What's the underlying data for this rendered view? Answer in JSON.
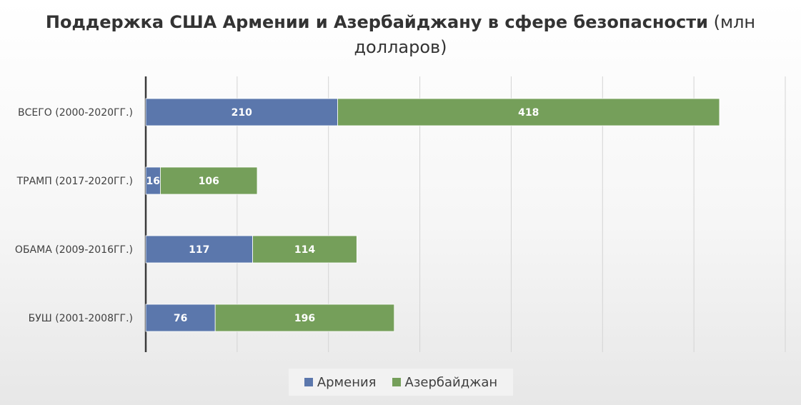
{
  "chart_data": {
    "type": "bar",
    "orientation": "horizontal",
    "stacked": true,
    "title_bold": "Поддержка США Армении и Азербайджану в сфере безопасности",
    "title_normal": "(млн долларов)",
    "categories": [
      "ВСЕГО (2000-2020ГГ.)",
      "ТРАМП (2017-2020ГГ.)",
      "ОБАМА (2009-2016ГГ.)",
      "БУШ (2001-2008ГГ.)"
    ],
    "series": [
      {
        "name": "Армения",
        "values": [
          210,
          16,
          117,
          76
        ],
        "color": "#5b77ac"
      },
      {
        "name": "Азербайджан",
        "values": [
          418,
          106,
          114,
          196
        ],
        "color": "#759f5a"
      }
    ],
    "xlim": [
      0,
      700
    ],
    "grid": true,
    "legend_position": "bottom",
    "data_labels": true
  }
}
